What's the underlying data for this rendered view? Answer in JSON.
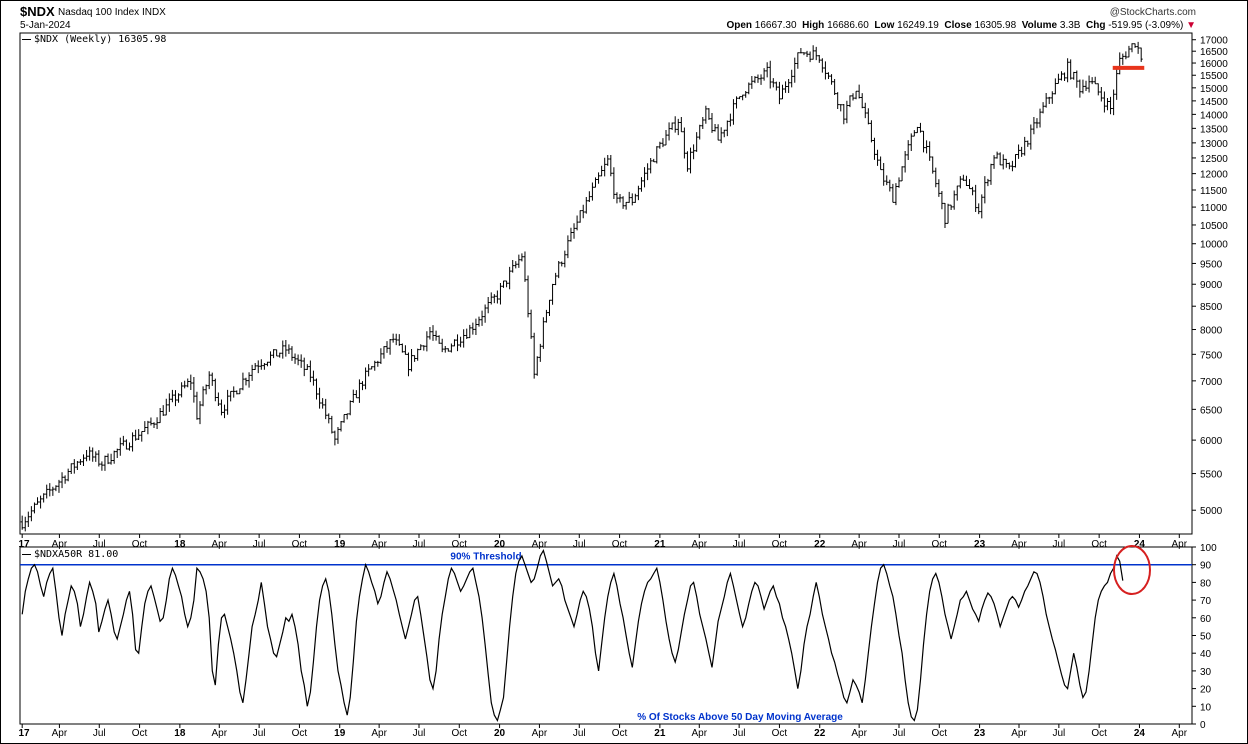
{
  "header": {
    "symbol": "$NDX",
    "description": "Nasdaq 100 Index",
    "exchange": "INDX",
    "date": "5-Jan-2024",
    "watermark": "@StockCharts.com",
    "open_label": "Open",
    "open": "16667.30",
    "high_label": "High",
    "high": "16686.60",
    "low_label": "Low",
    "low": "16249.19",
    "close_label": "Close",
    "close": "16305.98",
    "volume_label": "Volume",
    "volume": "3.3B",
    "chg_label": "Chg",
    "chg": "-519.95 (-3.09%)",
    "chg_arrow": "▼"
  },
  "legends": {
    "main": "$NDX (Weekly) 16305.98",
    "indicator": "$NDXA50R 81.00"
  },
  "colors": {
    "accent_blue": "#0033cc",
    "support_red": "#e8341c",
    "circle_red": "#d62020",
    "price": "#000000"
  },
  "chart_data": [
    {
      "type": "ohlc",
      "title": "$NDX (Weekly) 16305.98",
      "ylim": [
        4700,
        17300
      ],
      "yticks": [
        5000,
        5500,
        6000,
        6500,
        7000,
        7500,
        8000,
        8500,
        9000,
        9500,
        10000,
        10500,
        11000,
        11500,
        12000,
        12500,
        13000,
        13500,
        14000,
        14500,
        15000,
        15500,
        16000,
        16500,
        17000
      ],
      "ytick_labels": [
        "5000",
        "5500",
        "6000",
        "6500",
        "7000",
        "7500",
        "8000",
        "8500",
        "9000",
        "9500",
        "10000",
        "10500",
        "11000",
        "11500",
        "12000",
        "12500",
        "13000",
        "13500",
        "14000",
        "14500",
        "15000",
        "15500",
        "16000",
        "16500",
        "17000"
      ],
      "x_dates": [
        "2017-01-06",
        "2017-04-01",
        "2017-07-01",
        "2017-10-01",
        "2018-01-01",
        "2018-04-01",
        "2018-07-01",
        "2018-10-01",
        "2019-01-01",
        "2019-04-01",
        "2019-07-01",
        "2019-10-01",
        "2020-01-01",
        "2020-04-01",
        "2020-07-01",
        "2020-10-01",
        "2021-01-01",
        "2021-04-01",
        "2021-07-01",
        "2021-10-01",
        "2022-01-01",
        "2022-04-01",
        "2022-07-01",
        "2022-10-01",
        "2023-01-01",
        "2023-04-01",
        "2023-07-01",
        "2023-10-01",
        "2024-01-01",
        "2024-04-01"
      ],
      "x_tick_labels": [
        "17",
        "Apr",
        "Jul",
        "Oct",
        "18",
        "Apr",
        "Jul",
        "Oct",
        "19",
        "Apr",
        "Jul",
        "Oct",
        "20",
        "Apr",
        "Jul",
        "Oct",
        "21",
        "Apr",
        "Jul",
        "Oct",
        "22",
        "Apr",
        "Jul",
        "Oct",
        "23",
        "Apr",
        "Jul",
        "Oct",
        "24",
        "Apr"
      ],
      "anchors_date": [
        "2017-01-06",
        "2017-06-02",
        "2017-07-07",
        "2017-10-27",
        "2018-01-26",
        "2018-02-09",
        "2018-03-09",
        "2018-04-06",
        "2018-06-22",
        "2018-08-31",
        "2018-10-26",
        "2018-12-21",
        "2019-02-22",
        "2019-05-03",
        "2019-06-07",
        "2019-07-26",
        "2019-08-23",
        "2019-10-25",
        "2019-12-27",
        "2020-02-21",
        "2020-03-20",
        "2020-04-30",
        "2020-06-05",
        "2020-09-04",
        "2020-09-25",
        "2020-10-30",
        "2020-12-31",
        "2021-02-12",
        "2021-03-05",
        "2021-04-16",
        "2021-05-14",
        "2021-07-09",
        "2021-09-03",
        "2021-10-01",
        "2021-11-19",
        "2021-12-31",
        "2022-02-25",
        "2022-03-25",
        "2022-05-20",
        "2022-06-17",
        "2022-08-12",
        "2022-10-14",
        "2022-11-25",
        "2022-12-30",
        "2023-02-03",
        "2023-03-10",
        "2023-04-28",
        "2023-06-16",
        "2023-07-21",
        "2023-08-18",
        "2023-09-08",
        "2023-10-27",
        "2023-11-17",
        "2023-12-22",
        "2024-01-05"
      ],
      "anchors_value": [
        4850,
        5800,
        5650,
        6250,
        7000,
        6400,
        7100,
        6500,
        7300,
        7600,
        7100,
        6000,
        7000,
        7800,
        7300,
        7950,
        7550,
        8000,
        8750,
        9700,
        7100,
        9000,
        10000,
        12400,
        11100,
        11200,
        12900,
        13800,
        12300,
        14000,
        13100,
        14900,
        15600,
        14600,
        16500,
        16300,
        14000,
        15000,
        12000,
        11300,
        13700,
        10700,
        11900,
        10950,
        12600,
        12100,
        13300,
        14900,
        15800,
        15000,
        15300,
        14200,
        16100,
        16900,
        16306
      ],
      "support_line": {
        "value": 15800,
        "from": "2023-11-01",
        "to": "2024-01-12"
      }
    },
    {
      "type": "line",
      "title": "% Of Stocks Above 50 Day Moving Average",
      "ylim": [
        0,
        100
      ],
      "yticks": [
        0,
        10,
        20,
        30,
        40,
        50,
        60,
        70,
        80,
        90,
        100
      ],
      "ytick_labels": [
        "0",
        "10",
        "20",
        "30",
        "40",
        "50",
        "60",
        "70",
        "80",
        "90",
        "100"
      ],
      "threshold": {
        "value": 90,
        "label": "90% Threshold"
      },
      "x_tick_labels": [
        "17",
        "Apr",
        "Jul",
        "Oct",
        "18",
        "Apr",
        "Jul",
        "Oct",
        "19",
        "Apr",
        "Jul",
        "Oct",
        "20",
        "Apr",
        "Jul",
        "Oct",
        "21",
        "Apr",
        "Jul",
        "Oct",
        "22",
        "Apr",
        "Jul",
        "Oct",
        "23",
        "Apr",
        "Jul",
        "Oct",
        "24",
        "Apr"
      ],
      "series": [
        {
          "name": "$NDXA50R",
          "start": "2017-01-06",
          "step_days": 7,
          "values": [
            62,
            75,
            82,
            88,
            90,
            86,
            78,
            72,
            80,
            85,
            88,
            75,
            60,
            50,
            62,
            70,
            78,
            75,
            68,
            55,
            62,
            72,
            80,
            75,
            68,
            52,
            58,
            65,
            70,
            62,
            52,
            48,
            55,
            62,
            70,
            75,
            62,
            42,
            40,
            55,
            68,
            75,
            78,
            72,
            65,
            58,
            60,
            70,
            82,
            88,
            84,
            78,
            72,
            62,
            55,
            60,
            70,
            88,
            86,
            82,
            75,
            60,
            30,
            22,
            45,
            60,
            62,
            55,
            48,
            40,
            30,
            18,
            12,
            25,
            40,
            55,
            62,
            70,
            80,
            68,
            55,
            48,
            40,
            38,
            45,
            52,
            60,
            58,
            62,
            55,
            45,
            30,
            22,
            10,
            18,
            35,
            55,
            70,
            78,
            82,
            75,
            62,
            45,
            30,
            22,
            12,
            5,
            15,
            35,
            58,
            72,
            82,
            90,
            86,
            80,
            75,
            68,
            72,
            80,
            86,
            82,
            76,
            70,
            62,
            55,
            48,
            55,
            62,
            70,
            72,
            62,
            50,
            38,
            25,
            20,
            30,
            48,
            62,
            72,
            82,
            88,
            85,
            80,
            75,
            78,
            82,
            86,
            88,
            80,
            72,
            60,
            45,
            28,
            12,
            5,
            2,
            8,
            15,
            35,
            55,
            72,
            85,
            92,
            95,
            90,
            85,
            80,
            82,
            88,
            95,
            98,
            92,
            85,
            78,
            80,
            82,
            78,
            70,
            65,
            60,
            55,
            62,
            70,
            75,
            72,
            65,
            55,
            40,
            30,
            45,
            60,
            72,
            80,
            85,
            78,
            68,
            60,
            50,
            40,
            32,
            45,
            58,
            68,
            75,
            80,
            82,
            85,
            88,
            80,
            70,
            58,
            48,
            40,
            35,
            42,
            52,
            62,
            70,
            78,
            80,
            72,
            62,
            55,
            48,
            40,
            32,
            45,
            58,
            65,
            72,
            80,
            85,
            78,
            70,
            62,
            55,
            60,
            68,
            75,
            80,
            78,
            72,
            65,
            70,
            75,
            78,
            72,
            68,
            60,
            55,
            48,
            40,
            30,
            20,
            30,
            45,
            55,
            62,
            72,
            80,
            72,
            62,
            55,
            48,
            40,
            35,
            28,
            22,
            15,
            12,
            18,
            25,
            22,
            18,
            12,
            25,
            40,
            55,
            68,
            80,
            88,
            90,
            85,
            78,
            72,
            62,
            50,
            40,
            25,
            12,
            4,
            2,
            8,
            25,
            45,
            62,
            75,
            82,
            85,
            80,
            72,
            62,
            55,
            48,
            55,
            62,
            70,
            72,
            75,
            70,
            65,
            62,
            58,
            65,
            70,
            74,
            72,
            68,
            62,
            55,
            60,
            65,
            70,
            72,
            70,
            66,
            70,
            75,
            78,
            82,
            86,
            85,
            80,
            72,
            62,
            55,
            48,
            42,
            35,
            28,
            22,
            20,
            30,
            40,
            32,
            22,
            15,
            18,
            30,
            45,
            60,
            70,
            75,
            78,
            80,
            85,
            88,
            95,
            92,
            81
          ]
        }
      ],
      "annotation_circle": {
        "date": "2023-12-15",
        "value": 87
      }
    }
  ]
}
